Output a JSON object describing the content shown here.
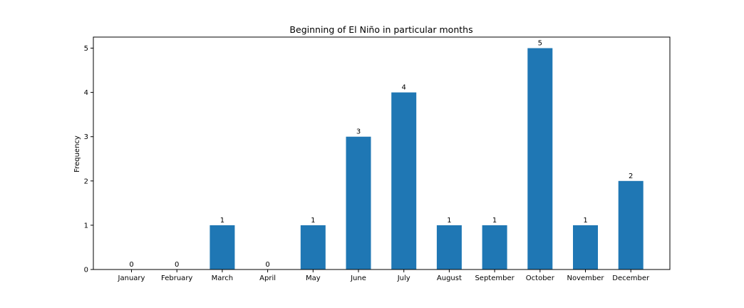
{
  "chart_data": {
    "type": "bar",
    "title": "Beginning of El Niño in particular months",
    "xlabel": "",
    "ylabel": "Frequency",
    "categories": [
      "January",
      "February",
      "March",
      "April",
      "May",
      "June",
      "July",
      "August",
      "September",
      "October",
      "November",
      "December"
    ],
    "values": [
      0,
      0,
      1,
      0,
      1,
      3,
      4,
      1,
      1,
      5,
      1,
      2
    ],
    "yticks": [
      0,
      1,
      2,
      3,
      4,
      5
    ],
    "ylim": [
      0,
      5.25
    ],
    "grid": false,
    "bar_color": "#1f77b4",
    "show_value_labels": true
  }
}
